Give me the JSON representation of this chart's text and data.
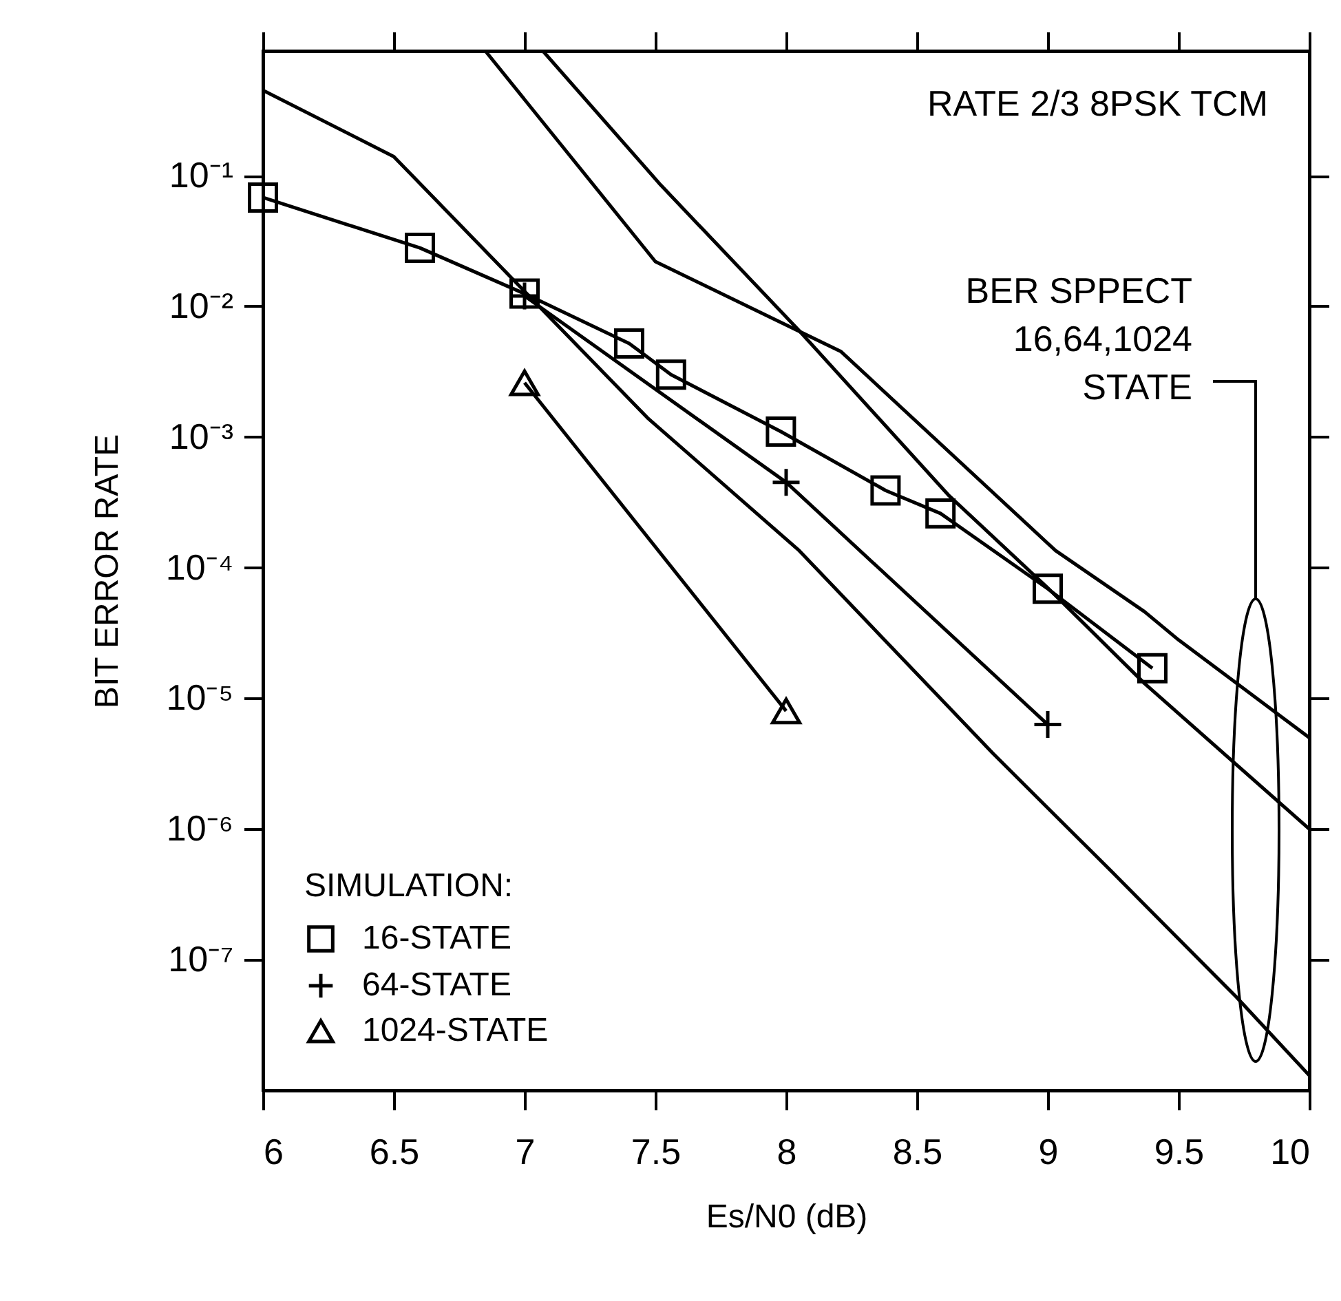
{
  "chart_data": {
    "type": "line",
    "title": "RATE 2/3 8PSK TCM",
    "xlabel": "Es/N0 (dB)",
    "ylabel": "BIT ERROR RATE",
    "legend_title": "SIMULATION:",
    "legend": "bottom left",
    "log": "y",
    "xlim": [
      6,
      10
    ],
    "xticks": [
      6,
      6.5,
      7,
      7.5,
      8,
      8.5,
      9,
      9.5,
      10
    ],
    "ylim": [
      1e-08,
      0.9
    ],
    "yticks": [
      {
        "value": 0.1,
        "label": "10⁻¹"
      },
      {
        "value": 0.01,
        "label": "10⁻²"
      },
      {
        "value": 0.001,
        "label": "10⁻³"
      },
      {
        "value": 0.0001,
        "label": "10⁻⁴"
      },
      {
        "value": 1e-05,
        "label": "10⁻⁵"
      },
      {
        "value": 1e-06,
        "label": "10⁻⁶"
      },
      {
        "value": 1e-07,
        "label": "10⁻⁷"
      }
    ],
    "annotations": [
      "BER SPPECT\n16,64,1024\nSTATE"
    ],
    "series": [
      {
        "name": "16-STATE",
        "color": "#000000",
        "marker": "square",
        "x": [
          6,
          6.6,
          7,
          7.4,
          7.56,
          7.98,
          8.38,
          8.59,
          9,
          9.4
        ],
        "values": [
          0.068,
          0.028,
          0.0125,
          0.0052,
          0.003,
          0.0011,
          0.00039,
          0.00026,
          6.9e-05,
          1.7e-05
        ]
      },
      {
        "name": "64-STATE",
        "color": "#000000",
        "marker": "cross",
        "x": [
          7,
          8,
          9
        ],
        "values": [
          0.012,
          0.00045,
          6.3e-06
        ]
      },
      {
        "name": "1024-STATE",
        "color": "#000000",
        "marker": "triangle",
        "x": [
          7,
          8
        ],
        "values": [
          0.0026,
          8e-06
        ]
      },
      {
        "color": "#000000",
        "marker": "none",
        "x": [
          6,
          6.5,
          7,
          7.47,
          8.05,
          8.79,
          9.25,
          9.72,
          10
        ],
        "values": [
          0.45,
          0.14,
          0.013,
          0.0014,
          0.000135,
          3.8e-06,
          4.6e-07,
          5.2e-08,
          1.3e-08
        ]
      },
      {
        "color": "#000000",
        "marker": "none",
        "x": [
          6.85,
          7.5,
          8.21,
          9.03,
          9.37,
          9.5,
          10
        ],
        "values": [
          0.9,
          0.022,
          0.0045,
          0.000135,
          4.6e-05,
          2.8e-05,
          5e-06
        ]
      },
      {
        "color": "#000000",
        "marker": "none",
        "x": [
          7.07,
          7.52,
          8.05,
          8.62,
          9,
          9.37,
          10
        ],
        "values": [
          0.9,
          0.085,
          0.0065,
          0.00036,
          7e-05,
          1.3e-05,
          1e-06
        ]
      }
    ]
  }
}
